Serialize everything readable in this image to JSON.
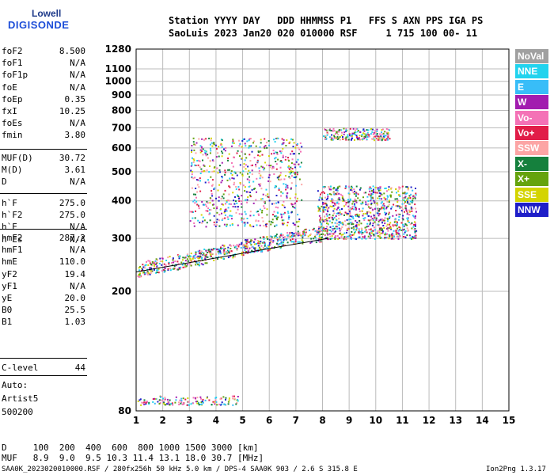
{
  "logo": {
    "top": "Lowell",
    "main": "DIGISONDE"
  },
  "header": {
    "line1": "Station YYYY DAY   DDD HHMMSS P1   FFS S AXN PPS IGA PS",
    "line2": "SaoLuis 2023 Jan20 020 010000 RSF     1 715 100 00- 11"
  },
  "params_group1": [
    {
      "label": "foF2",
      "value": "8.500"
    },
    {
      "label": "foF1",
      "value": "N/A"
    },
    {
      "label": "foF1p",
      "value": "N/A"
    },
    {
      "label": "foE",
      "value": "N/A"
    },
    {
      "label": "foEp",
      "value": "0.35"
    },
    {
      "label": "fxI",
      "value": "10.25"
    },
    {
      "label": "foEs",
      "value": "N/A"
    },
    {
      "label": "fmin",
      "value": "3.80"
    }
  ],
  "params_group2": [
    {
      "label": "MUF(D)",
      "value": "30.72"
    },
    {
      "label": "M(D)",
      "value": "3.61"
    },
    {
      "label": "D",
      "value": "N/A"
    }
  ],
  "params_group3": [
    {
      "label": "h`F",
      "value": "275.0"
    },
    {
      "label": "h`F2",
      "value": "275.0"
    },
    {
      "label": "h`E",
      "value": "N/A"
    },
    {
      "label": "h`Es",
      "value": "N/A"
    }
  ],
  "params_group4": [
    {
      "label": "hmF2",
      "value": "287.2"
    },
    {
      "label": "hmF1",
      "value": "N/A"
    },
    {
      "label": "hmE",
      "value": "110.0"
    },
    {
      "label": "yF2",
      "value": "19.4"
    },
    {
      "label": "yF1",
      "value": "N/A"
    },
    {
      "label": "yE",
      "value": "20.0"
    },
    {
      "label": "B0",
      "value": "25.5"
    },
    {
      "label": "B1",
      "value": "1.03"
    }
  ],
  "params_group5": [
    {
      "label": "C-level",
      "value": "44"
    }
  ],
  "autoscale": {
    "line1": "Auto:",
    "line2": "Artist5",
    "line3": "500200"
  },
  "legend": [
    {
      "label": "NoVal",
      "color": "#a0a0a0"
    },
    {
      "label": "NNE",
      "color": "#22d3ee"
    },
    {
      "label": "E",
      "color": "#38bdf8"
    },
    {
      "label": "W",
      "color": "#a21caf"
    },
    {
      "label": "Vo-",
      "color": "#f472b6"
    },
    {
      "label": "Vo+",
      "color": "#e11d48"
    },
    {
      "label": "SSW",
      "color": "#fca5a5"
    },
    {
      "label": "X-",
      "color": "#15803d"
    },
    {
      "label": "X+",
      "color": "#65a30d"
    },
    {
      "label": "SSE",
      "color": "#d4d400"
    },
    {
      "label": "NNW",
      "color": "#1e1ec8"
    }
  ],
  "footer": {
    "line1": "D     100  200  400  600  800 1000 1500 3000 [km]",
    "line2": "MUF   8.9  9.0  9.5 10.3 11.4 13.1 18.0 30.7 [MHz]",
    "line3": "SAA0K_2023020010000.RSF / 280fx256h 50 kHz 5.0 km / DPS-4 SAA0K 903 / 2.6 S 315.8 E",
    "version": "Ion2Png 1.3.17"
  },
  "chart_data": {
    "type": "scatter",
    "xlabel": "",
    "ylabel": "",
    "xlim": [
      1,
      15
    ],
    "ylim": [
      80,
      1280
    ],
    "y_scale": "logarithmic",
    "grid": true,
    "x_ticks": [
      1,
      2,
      3,
      4,
      5,
      6,
      7,
      8,
      9,
      10,
      11,
      12,
      13,
      14,
      15
    ],
    "y_ticks": [
      80,
      200,
      300,
      400,
      500,
      600,
      700,
      800,
      900,
      1000,
      1100,
      1280
    ],
    "clusters": [
      {
        "name": "low-echo",
        "xmin": 1.0,
        "xmax": 4.8,
        "ymin": 84,
        "ymax": 90,
        "count": 150
      },
      {
        "name": "F-trace-main",
        "x": [
          1.0,
          2.0,
          3.0,
          4.0,
          5.0,
          6.0,
          7.0,
          8.0
        ],
        "y": [
          232,
          240,
          250,
          262,
          275,
          285,
          295,
          305
        ],
        "count": 600
      },
      {
        "name": "F-cluster",
        "xmin": 7.8,
        "xmax": 11.5,
        "ymin": 300,
        "ymax": 450,
        "count": 900
      },
      {
        "name": "F2-diffuse",
        "xmin": 3.0,
        "xmax": 7.2,
        "ymin": 330,
        "ymax": 650,
        "count": 700
      },
      {
        "name": "upper",
        "xmin": 8.0,
        "xmax": 10.5,
        "ymin": 640,
        "ymax": 700,
        "count": 200
      }
    ],
    "fit_line": {
      "x": [
        1.0,
        8.2
      ],
      "y": [
        232,
        300
      ]
    }
  }
}
